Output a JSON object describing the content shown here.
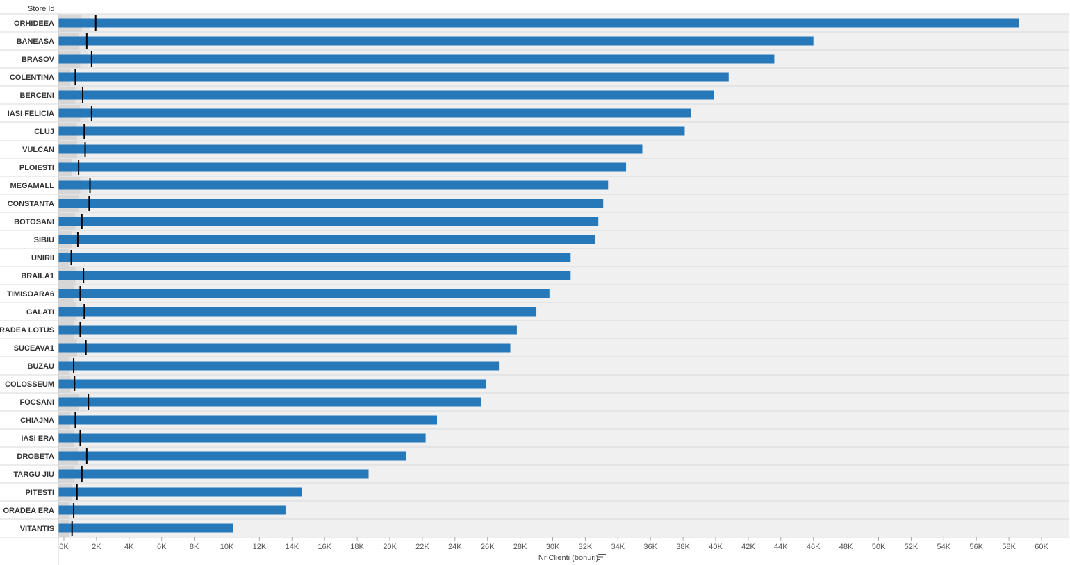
{
  "chart_data": {
    "type": "bar",
    "orientation": "horizontal",
    "row_header": "Store Id",
    "xlabel": "Nr Clienti (bonuri)",
    "sort_icon": "sort-descending-icon",
    "xlim": [
      0,
      61000
    ],
    "xticks": [
      0,
      2000,
      4000,
      6000,
      8000,
      10000,
      12000,
      14000,
      16000,
      18000,
      20000,
      22000,
      24000,
      26000,
      28000,
      30000,
      32000,
      34000,
      36000,
      38000,
      40000,
      42000,
      44000,
      46000,
      48000,
      50000,
      52000,
      54000,
      56000,
      58000,
      60000
    ],
    "xtick_labels": [
      "0K",
      "2K",
      "4K",
      "6K",
      "8K",
      "10K",
      "12K",
      "14K",
      "16K",
      "18K",
      "20K",
      "22K",
      "24K",
      "26K",
      "28K",
      "30K",
      "32K",
      "34K",
      "36K",
      "38K",
      "40K",
      "42K",
      "44K",
      "46K",
      "48K",
      "50K",
      "52K",
      "54K",
      "56K",
      "58K",
      "60K"
    ],
    "categories": [
      "ORHIDEEA",
      "BANEASA",
      "BRASOV",
      "COLENTINA",
      "BERCENI",
      "IASI FELICIA",
      "CLUJ",
      "VULCAN",
      "PLOIESTI",
      "MEGAMALL",
      "CONSTANTA",
      "BOTOSANI",
      "SIBIU",
      "UNIRII",
      "BRAILA1",
      "TIMISOARA6",
      "GALATI",
      "ORADEA LOTUS",
      "SUCEAVA1",
      "BUZAU",
      "COLOSSEUM",
      "FOCSANI",
      "CHIAJNA",
      "IASI ERA",
      "DROBETA",
      "TARGU JIU",
      "PITESTI",
      "ORADEA ERA",
      "VITANTIS"
    ],
    "values": [
      58600,
      46000,
      43600,
      40800,
      39900,
      38500,
      38100,
      35500,
      34500,
      33400,
      33100,
      32800,
      32600,
      31100,
      31100,
      29800,
      29000,
      27800,
      27400,
      26700,
      25900,
      25600,
      22900,
      22200,
      21000,
      18700,
      14600,
      13600,
      10400
    ],
    "reference_values": [
      1950,
      1400,
      1700,
      700,
      1150,
      1700,
      1250,
      1300,
      900,
      1600,
      1550,
      1100,
      850,
      450,
      1200,
      1000,
      1250,
      1000,
      1350,
      600,
      650,
      1500,
      700,
      1000,
      1400,
      1100,
      800,
      600,
      500
    ],
    "band_values": [
      [
        1100,
        1600
      ],
      [
        900,
        1300
      ],
      [
        1000,
        1500
      ],
      [
        400,
        700
      ],
      [
        700,
        1100
      ],
      [
        1000,
        1500
      ],
      [
        800,
        1200
      ],
      [
        800,
        1200
      ],
      [
        500,
        800
      ],
      [
        1000,
        1500
      ],
      [
        900,
        1400
      ],
      [
        700,
        1050
      ],
      [
        500,
        800
      ],
      [
        300,
        500
      ],
      [
        700,
        1100
      ],
      [
        600,
        900
      ],
      [
        750,
        1150
      ],
      [
        600,
        950
      ],
      [
        800,
        1250
      ],
      [
        350,
        550
      ],
      [
        400,
        600
      ],
      [
        900,
        1400
      ],
      [
        400,
        650
      ],
      [
        600,
        950
      ],
      [
        850,
        1300
      ],
      [
        650,
        1000
      ],
      [
        500,
        750
      ],
      [
        350,
        550
      ],
      [
        300,
        450
      ]
    ],
    "colors": {
      "bar": "#2778b8",
      "reference_line": "#000000",
      "band_dark": "#d6d6d6",
      "band_light": "#e6e6e6",
      "row_background": "#f0f0f0",
      "row_divider": "#d8d8d8",
      "axis_text": "#555555",
      "label_text": "#333333"
    },
    "gridlines": false
  }
}
